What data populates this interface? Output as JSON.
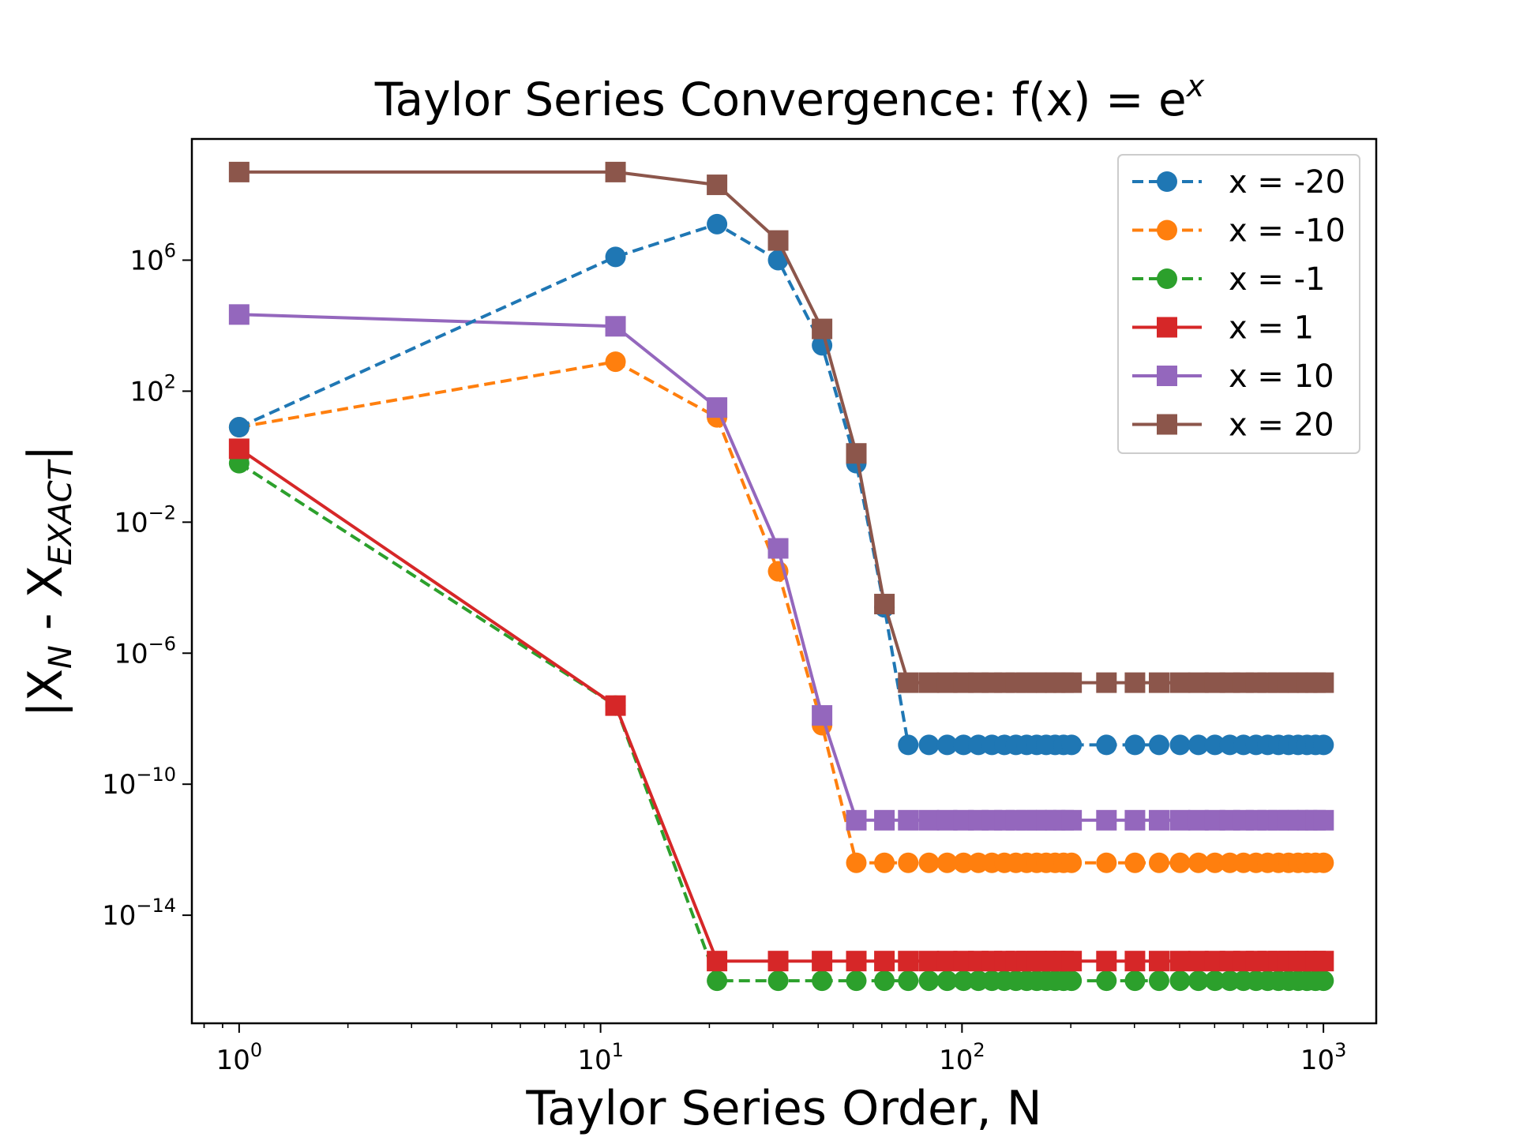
{
  "chart_data": {
    "type": "line",
    "title": "Taylor Series Convergence: f(x) = e",
    "title_superscript": "x",
    "xlabel": "Taylor Series Order, N",
    "ylabel_main": "|X",
    "ylabel_sub1": "N",
    "ylabel_mid": " - X",
    "ylabel_sub2": "EXACT",
    "ylabel_end": "|",
    "x_scale": "log",
    "y_scale": "log",
    "xlim": [
      0.74,
      1400
    ],
    "ylim_exp": [
      -17.3,
      9.7
    ],
    "x_ticks": [
      {
        "value": 1,
        "base": "10",
        "exp": "0"
      },
      {
        "value": 10,
        "base": "10",
        "exp": "1"
      },
      {
        "value": 100,
        "base": "10",
        "exp": "2"
      },
      {
        "value": 1000,
        "base": "10",
        "exp": "3"
      }
    ],
    "y_ticks": [
      {
        "value_exp": 6,
        "base": "10",
        "exp": "6"
      },
      {
        "value_exp": 2,
        "base": "10",
        "exp": "2"
      },
      {
        "value_exp": -2,
        "base": "10",
        "exp": "−2"
      },
      {
        "value_exp": -6,
        "base": "10",
        "exp": "−6"
      },
      {
        "value_exp": -10,
        "base": "10",
        "exp": "−10"
      },
      {
        "value_exp": -14,
        "base": "10",
        "exp": "−14"
      }
    ],
    "grid": false,
    "legend_position": "top-right",
    "x": [
      1,
      11,
      21,
      31,
      41,
      51,
      61,
      71,
      81,
      91,
      101,
      111,
      121,
      131,
      141,
      151,
      161,
      171,
      181,
      191,
      201,
      251,
      301,
      351,
      401,
      451,
      501,
      551,
      601,
      651,
      701,
      751,
      801,
      851,
      901,
      951,
      1001
    ],
    "series": [
      {
        "name": "x = -20",
        "color": "#1f77b4",
        "marker": "circle",
        "linestyle": "dashed",
        "key_points": [
          [
            1,
            0.9
          ],
          [
            11,
            6.1
          ],
          [
            21,
            7.1
          ],
          [
            31,
            6.0
          ],
          [
            41,
            3.4
          ],
          [
            51,
            -0.2
          ],
          [
            61,
            -4.6
          ],
          [
            71,
            -8.8
          ]
        ],
        "tail_value_exp": -8.8
      },
      {
        "name": "x = -10",
        "color": "#ff7f0e",
        "marker": "circle",
        "linestyle": "dashed",
        "key_points": [
          [
            1,
            0.9
          ],
          [
            11,
            2.9
          ],
          [
            21,
            1.2
          ],
          [
            31,
            -3.5
          ],
          [
            41,
            -8.2
          ],
          [
            51,
            -12.4
          ]
        ],
        "tail_value_exp": -12.4
      },
      {
        "name": "x = -1",
        "color": "#2ca02c",
        "marker": "circle",
        "linestyle": "dashed",
        "key_points": [
          [
            1,
            -0.2
          ],
          [
            11,
            -7.6
          ],
          [
            21,
            -16.0
          ]
        ],
        "tail_value_exp": -16.0
      },
      {
        "name": "x = 1",
        "color": "#d62728",
        "marker": "square",
        "linestyle": "solid",
        "key_points": [
          [
            1,
            0.24
          ],
          [
            11,
            -7.6
          ],
          [
            21,
            -15.4
          ]
        ],
        "tail_value_exp": -15.4
      },
      {
        "name": "x = 10",
        "color": "#9467bd",
        "marker": "square",
        "linestyle": "solid",
        "key_points": [
          [
            1,
            4.34
          ],
          [
            11,
            3.98
          ],
          [
            21,
            1.5
          ],
          [
            31,
            -2.8
          ],
          [
            41,
            -7.9
          ],
          [
            51,
            -11.1
          ]
        ],
        "tail_value_exp": -11.1
      },
      {
        "name": "x = 20",
        "color": "#8c564b",
        "marker": "square",
        "linestyle": "solid",
        "key_points": [
          [
            1,
            8.69
          ],
          [
            11,
            8.69
          ],
          [
            21,
            8.3
          ],
          [
            31,
            6.6
          ],
          [
            41,
            3.9
          ],
          [
            51,
            0.1
          ],
          [
            61,
            -4.5
          ],
          [
            71,
            -6.9
          ]
        ],
        "tail_value_exp": -6.9
      }
    ]
  }
}
